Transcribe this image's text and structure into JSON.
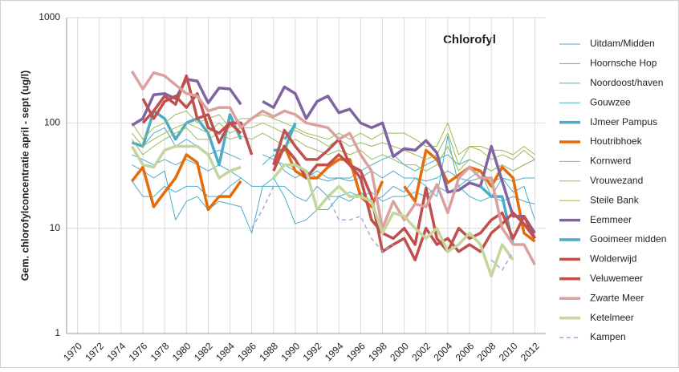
{
  "chart_data": {
    "type": "line",
    "title": "Chlorofyl",
    "y_label": "Gem. chlorofylconcentratie april - sept (ug/l)",
    "log_scale": true,
    "grid": true,
    "legend": "right",
    "xlim": [
      1969,
      2013
    ],
    "xticks": [
      1970,
      1972,
      1974,
      1976,
      1978,
      1980,
      1982,
      1984,
      1986,
      1988,
      1990,
      1992,
      1994,
      1996,
      1998,
      2000,
      2002,
      2004,
      2006,
      2008,
      2010,
      2012
    ],
    "ylim": [
      1,
      1000
    ],
    "yticks": [
      1,
      10,
      100,
      1000
    ],
    "x": [
      1975,
      1976,
      1977,
      1978,
      1979,
      1980,
      1981,
      1982,
      1983,
      1984,
      1985,
      1986,
      1987,
      1988,
      1989,
      1990,
      1991,
      1992,
      1993,
      1994,
      1995,
      1996,
      1997,
      1998,
      1999,
      2000,
      2001,
      2002,
      2003,
      2004,
      2005,
      2006,
      2007,
      2008,
      2009,
      2010,
      2011,
      2012
    ],
    "series": [
      {
        "name": "Uitdam/Midden",
        "color": "#4bacc6",
        "width": 1,
        "values": [
          28,
          20,
          20,
          25,
          22,
          25,
          25,
          20,
          20,
          25,
          30,
          25,
          25,
          25,
          25,
          20,
          18,
          25,
          20,
          20,
          22,
          20,
          22,
          18,
          20,
          20,
          22,
          20,
          25,
          22,
          25,
          20,
          18,
          20,
          18,
          20,
          18,
          17
        ]
      },
      {
        "name": "Hoornsche Hop",
        "color": "#4bacc6",
        "width": 1,
        "values": [
          40,
          35,
          30,
          35,
          12,
          18,
          20,
          15,
          18,
          17,
          16,
          9,
          25,
          30,
          20,
          11,
          12,
          15,
          15,
          20,
          18,
          22,
          18,
          20,
          25,
          22,
          30,
          25,
          20,
          75,
          25,
          30,
          35,
          20,
          30,
          22,
          25,
          12
        ]
      },
      {
        "name": "Noordoost/haven",
        "color": "#4bacc6",
        "width": 1,
        "values": [
          50,
          45,
          40,
          45,
          40,
          45,
          40,
          35,
          40,
          35,
          30,
          null,
          40,
          50,
          35,
          30,
          35,
          30,
          28,
          30,
          30,
          35,
          40,
          45,
          50,
          40,
          35,
          40,
          45,
          50,
          40,
          45,
          40,
          35,
          40,
          35,
          40,
          45
        ]
      },
      {
        "name": "Gouwzee",
        "color": "#4bacc6",
        "width": 1,
        "values": [
          null,
          60,
          80,
          90,
          60,
          70,
          60,
          50,
          55,
          50,
          45,
          null,
          50,
          45,
          40,
          35,
          30,
          35,
          30,
          30,
          28,
          30,
          35,
          30,
          35,
          30,
          30,
          28,
          30,
          35,
          30,
          28,
          30,
          28,
          30,
          28,
          30,
          30
        ]
      },
      {
        "name": "IJmeer Pampus",
        "color": "#4bacc6",
        "width": 3.5,
        "values": [
          65,
          60,
          130,
          110,
          70,
          100,
          110,
          80,
          40,
          120,
          70,
          null,
          null,
          55,
          55,
          100,
          null,
          70,
          null,
          null,
          null,
          null,
          null,
          null,
          null,
          null,
          null,
          null,
          null,
          null,
          null,
          null,
          null,
          null,
          null,
          null,
          null,
          null
        ]
      },
      {
        "name": "Houtribhoek",
        "color": "#e46c0a",
        "width": 3.5,
        "values": [
          28,
          38,
          16,
          22,
          30,
          50,
          42,
          15,
          20,
          20,
          28,
          null,
          null,
          40,
          60,
          35,
          30,
          30,
          38,
          45,
          45,
          20,
          16,
          28,
          null,
          25,
          18,
          55,
          45,
          27,
          32,
          38,
          35,
          25,
          38,
          30,
          9,
          7.5
        ]
      },
      {
        "name": "Kornwerd",
        "color": "#9bbb59",
        "width": 1,
        "values": [
          100,
          70,
          90,
          100,
          120,
          130,
          100,
          110,
          120,
          90,
          110,
          110,
          120,
          110,
          100,
          90,
          80,
          75,
          70,
          80,
          70,
          80,
          70,
          80,
          80,
          80,
          70,
          60,
          60,
          100,
          50,
          60,
          60,
          55,
          55,
          50,
          60,
          50
        ]
      },
      {
        "name": "Vrouwezand",
        "color": "#9bbb59",
        "width": 1,
        "values": [
          80,
          60,
          70,
          80,
          90,
          100,
          90,
          80,
          100,
          80,
          90,
          90,
          100,
          90,
          80,
          85,
          75,
          70,
          60,
          70,
          60,
          65,
          60,
          65,
          60,
          55,
          50,
          45,
          50,
          80,
          40,
          60,
          55,
          45,
          50,
          45,
          55,
          45
        ]
      },
      {
        "name": "Steile Bank",
        "color": "#9bbb59",
        "width": 1,
        "values": [
          70,
          50,
          60,
          70,
          80,
          90,
          70,
          70,
          80,
          70,
          75,
          70,
          80,
          70,
          60,
          70,
          60,
          55,
          50,
          55,
          50,
          55,
          45,
          50,
          45,
          40,
          40,
          35,
          40,
          60,
          35,
          45,
          40,
          35,
          40,
          35,
          40,
          45
        ]
      },
      {
        "name": "Eemmeer",
        "color": "#8064a2",
        "width": 3.5,
        "values": [
          95,
          110,
          185,
          190,
          170,
          260,
          250,
          155,
          215,
          210,
          150,
          null,
          160,
          140,
          220,
          190,
          110,
          160,
          180,
          125,
          135,
          100,
          90,
          100,
          48,
          57,
          55,
          68,
          52,
          22,
          23,
          27,
          25,
          60,
          28,
          13,
          13,
          9
        ]
      },
      {
        "name": "Gooimeer midden",
        "color": "#4bacc6",
        "width": 3.5,
        "values": [
          null,
          null,
          null,
          null,
          null,
          null,
          null,
          null,
          null,
          null,
          null,
          null,
          null,
          null,
          70,
          95,
          null,
          null,
          null,
          null,
          null,
          null,
          null,
          null,
          null,
          null,
          null,
          null,
          null,
          null,
          null,
          null,
          25,
          20,
          20,
          7,
          null,
          null
        ]
      },
      {
        "name": "Wolderwijd",
        "color": "#c0504d",
        "width": 3.5,
        "values": [
          null,
          170,
          110,
          160,
          180,
          140,
          190,
          90,
          80,
          100,
          80,
          null,
          null,
          35,
          60,
          45,
          30,
          40,
          40,
          50,
          40,
          30,
          12,
          9,
          8,
          10,
          7,
          24,
          8,
          6,
          10,
          8,
          9,
          12,
          14,
          8,
          13,
          8
        ]
      },
      {
        "name": "Veluwemeer",
        "color": "#c0504d",
        "width": 3.5,
        "values": [
          null,
          100,
          130,
          180,
          150,
          280,
          110,
          120,
          65,
          100,
          100,
          50,
          null,
          40,
          85,
          60,
          45,
          45,
          55,
          70,
          40,
          35,
          20,
          6,
          7,
          8,
          5,
          10,
          7,
          8,
          6,
          7,
          6,
          9,
          11,
          14,
          11,
          8
        ]
      },
      {
        "name": "Zwarte Meer",
        "color": "#dda0a0",
        "width": 3.5,
        "values": [
          310,
          210,
          300,
          280,
          230,
          190,
          180,
          130,
          140,
          140,
          90,
          110,
          130,
          115,
          130,
          120,
          100,
          95,
          90,
          70,
          80,
          50,
          35,
          10,
          18,
          12,
          17,
          16,
          26,
          14,
          30,
          38,
          30,
          30,
          10,
          7,
          7,
          4.5
        ]
      },
      {
        "name": "Ketelmeer",
        "color": "#c3d69b",
        "width": 3.5,
        "values": [
          60,
          40,
          38,
          55,
          60,
          60,
          60,
          50,
          30,
          35,
          38,
          null,
          null,
          30,
          40,
          40,
          35,
          15,
          20,
          25,
          20,
          20,
          18,
          9,
          14,
          13,
          10,
          8,
          10,
          6,
          7,
          9,
          7,
          3.5,
          7,
          5,
          null,
          null
        ]
      },
      {
        "name": "Kampen",
        "color": "#a6a6d8",
        "width": 1.5,
        "dashed": true,
        "values": [
          null,
          null,
          null,
          null,
          null,
          null,
          null,
          null,
          null,
          null,
          null,
          10,
          15,
          25,
          null,
          null,
          null,
          null,
          20,
          12,
          12,
          13,
          8,
          6,
          7,
          null,
          null,
          null,
          null,
          null,
          null,
          null,
          null,
          5,
          4,
          6,
          null,
          null
        ]
      }
    ]
  }
}
